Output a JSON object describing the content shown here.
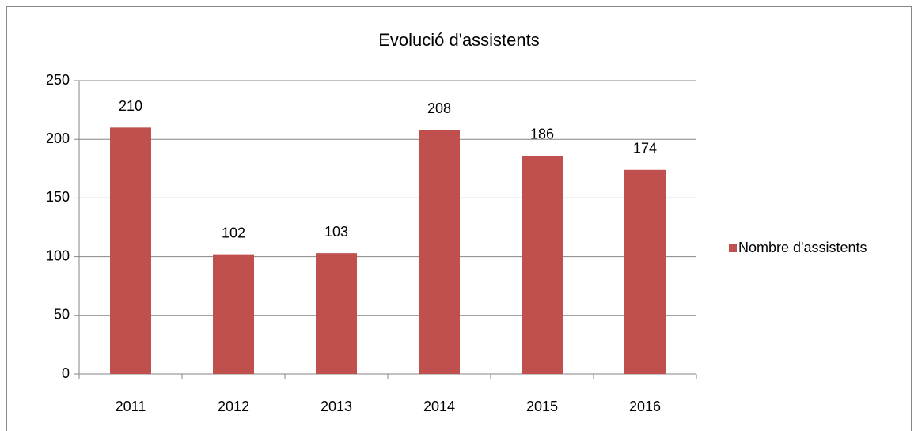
{
  "chart_data": {
    "type": "bar",
    "title": "Evolució d'assistents",
    "categories": [
      "2011",
      "2012",
      "2013",
      "2014",
      "2015",
      "2016"
    ],
    "series": [
      {
        "name": "Nombre d'assistents",
        "color": "#c0504d",
        "values": [
          210,
          102,
          103,
          208,
          186,
          174
        ]
      }
    ],
    "ylim": [
      0,
      250
    ],
    "yticks": [
      0,
      50,
      100,
      150,
      200,
      250
    ],
    "grid": true,
    "legend": "right"
  }
}
